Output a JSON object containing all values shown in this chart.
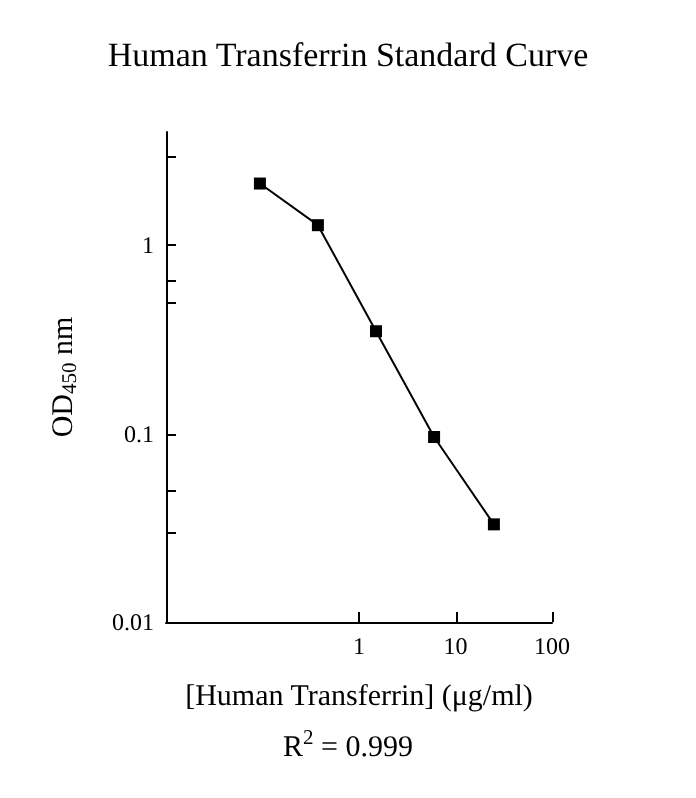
{
  "chart_data": {
    "type": "line",
    "title": "Human Transferrin Standard Curve",
    "xlabel": "[Human Transferrin] (μg/ml)",
    "ylabel": "OD$_{450}$ nm",
    "annotations": [
      "R$^{2}$ = 0.999"
    ],
    "x": [
      0.094,
      0.375,
      1.5,
      6,
      25
    ],
    "series": [
      {
        "color": "#000000",
        "values": [
          2.13,
          1.28,
          0.35,
          0.096,
          0.033
        ]
      }
    ],
    "log": "xy",
    "xlim": [
      0.01,
      100
    ],
    "xticks": [
      1,
      10,
      100
    ],
    "ylim": [
      0.01,
      4
    ],
    "yticks": [
      0.01,
      {
        "value": 0.03,
        "label": null
      },
      {
        "value": 0.05,
        "label": null
      },
      0.1,
      {
        "value": 0.5,
        "label": null
      },
      {
        "value": 0.65,
        "label": null
      },
      1,
      {
        "value": 3,
        "label": null
      }
    ],
    "grid": false,
    "marker": "square",
    "line_style": "solid"
  }
}
